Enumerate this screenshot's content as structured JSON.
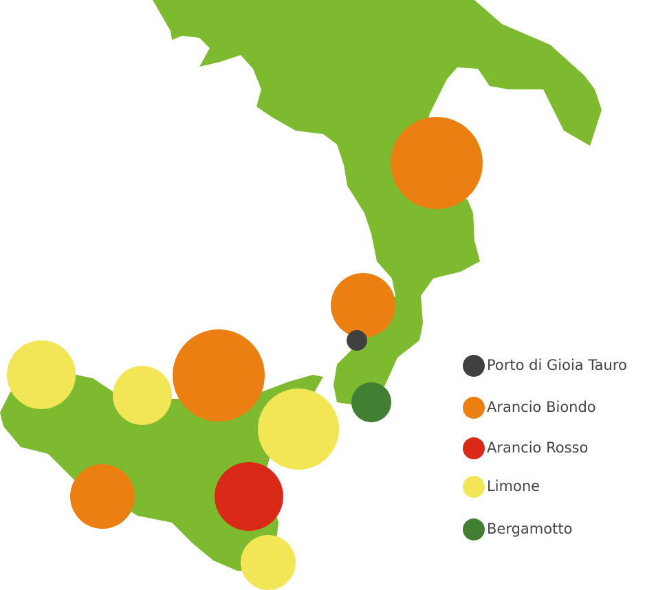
{
  "legend": [
    {
      "label": "Porto di Gioia Tauro",
      "color": "#404040"
    },
    {
      "label": "Arancio Biondo",
      "color": "#ec7f12"
    },
    {
      "label": "Arancio Rosso",
      "color": "#da2a17"
    },
    {
      "label": "Limone",
      "color": "#f2e657"
    },
    {
      "label": "Bergamotto",
      "color": "#437f33"
    }
  ]
}
